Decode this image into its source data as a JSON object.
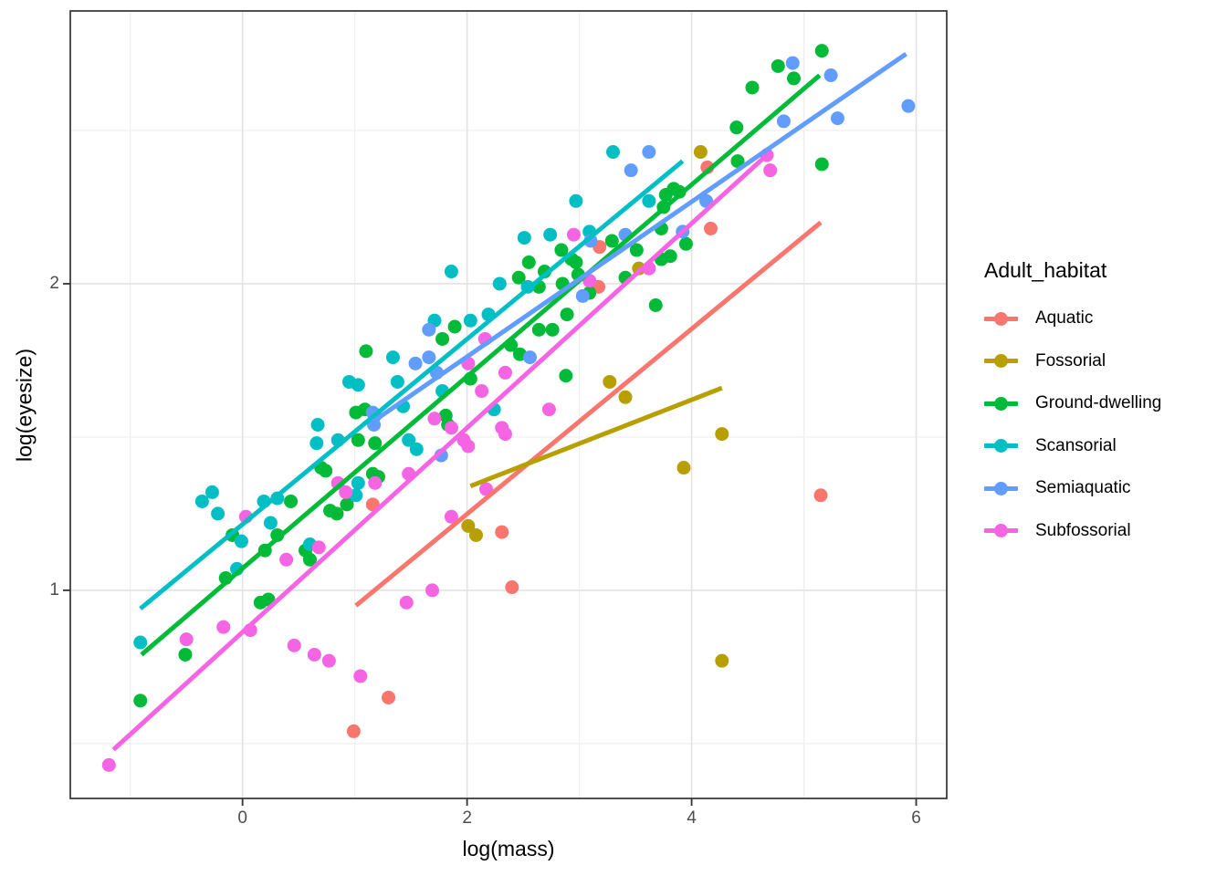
{
  "chart_data": {
    "type": "scatter",
    "title": "",
    "xlabel": "log(mass)",
    "ylabel": "log(eyesize)",
    "legend_title": "Adult_habitat",
    "legend_position": "right",
    "xlim": [
      -1.534,
      6.272
    ],
    "ylim": [
      0.321,
      2.89
    ],
    "x_ticks": [
      0,
      2,
      4,
      6
    ],
    "x_tick_labels": [
      "0",
      "2",
      "4",
      "6"
    ],
    "x_minor_ticks": [
      -1,
      1,
      3,
      5
    ],
    "y_ticks": [
      1,
      2
    ],
    "y_tick_labels": [
      "1",
      "2"
    ],
    "y_minor_ticks": [
      0.5,
      1.5,
      2.5
    ],
    "grid": true,
    "panel_border_color": "#333333",
    "grid_major_color": "#e3e3e3",
    "grid_minor_color": "#efefef",
    "tick_text_color": "#4d4d4d",
    "series": [
      {
        "name": "Aquatic",
        "color": "#F8766D",
        "points": [
          [
            3.18,
            2.12
          ],
          [
            3.17,
            1.99
          ],
          [
            4.14,
            2.38
          ],
          [
            4.17,
            2.18
          ],
          [
            5.15,
            1.31
          ],
          [
            1.16,
            1.28
          ],
          [
            2.4,
            1.01
          ],
          [
            2.31,
            1.19
          ],
          [
            1.3,
            0.65
          ],
          [
            0.99,
            0.54
          ]
        ],
        "trend": [
          [
            1.01,
            0.95
          ],
          [
            5.15,
            2.2
          ]
        ]
      },
      {
        "name": "Fossorial",
        "color": "#B79F00",
        "points": [
          [
            4.08,
            2.43
          ],
          [
            3.53,
            2.05
          ],
          [
            3.27,
            1.68
          ],
          [
            3.41,
            1.63
          ],
          [
            4.27,
            1.51
          ],
          [
            3.93,
            1.4
          ],
          [
            4.27,
            0.77
          ],
          [
            2.01,
            1.21
          ],
          [
            2.08,
            1.18
          ]
        ],
        "trend": [
          [
            2.03,
            1.34
          ],
          [
            4.27,
            1.66
          ]
        ]
      },
      {
        "name": "Ground-dwelling",
        "color": "#00BA38",
        "points": [
          [
            -0.91,
            0.64
          ],
          [
            -0.51,
            0.79
          ],
          [
            -0.15,
            1.04
          ],
          [
            -0.09,
            1.18
          ],
          [
            0.2,
            1.13
          ],
          [
            0.23,
            0.97
          ],
          [
            0.16,
            0.96
          ],
          [
            0.31,
            1.18
          ],
          [
            0.43,
            1.29
          ],
          [
            0.56,
            1.13
          ],
          [
            0.6,
            1.1
          ],
          [
            0.7,
            1.4
          ],
          [
            0.74,
            1.39
          ],
          [
            0.78,
            1.26
          ],
          [
            0.84,
            1.25
          ],
          [
            0.93,
            1.28
          ],
          [
            1.01,
            1.58
          ],
          [
            1.03,
            1.49
          ],
          [
            1.1,
            1.78
          ],
          [
            1.09,
            1.59
          ],
          [
            1.18,
            1.48
          ],
          [
            1.16,
            1.38
          ],
          [
            1.21,
            1.37
          ],
          [
            1.78,
            1.82
          ],
          [
            1.89,
            1.86
          ],
          [
            2.03,
            1.69
          ],
          [
            1.81,
            1.57
          ],
          [
            1.83,
            1.54
          ],
          [
            2.39,
            1.8
          ],
          [
            2.47,
            1.77
          ],
          [
            2.64,
            1.85
          ],
          [
            2.76,
            1.85
          ],
          [
            2.88,
            1.7
          ],
          [
            2.89,
            1.9
          ],
          [
            2.46,
            2.02
          ],
          [
            2.64,
            1.99
          ],
          [
            2.85,
            2.0
          ],
          [
            3.09,
            1.97
          ],
          [
            3.41,
            2.02
          ],
          [
            3.68,
            1.93
          ],
          [
            2.55,
            2.07
          ],
          [
            2.97,
            2.07
          ],
          [
            3.29,
            2.14
          ],
          [
            3.51,
            2.11
          ],
          [
            2.84,
            2.11
          ],
          [
            2.93,
            2.08
          ],
          [
            2.99,
            2.03
          ],
          [
            2.69,
            2.04
          ],
          [
            3.77,
            2.29
          ],
          [
            3.84,
            2.31
          ],
          [
            3.89,
            2.3
          ],
          [
            3.75,
            2.25
          ],
          [
            3.73,
            2.18
          ],
          [
            3.73,
            2.08
          ],
          [
            3.81,
            2.09
          ],
          [
            3.95,
            2.13
          ],
          [
            4.4,
            2.51
          ],
          [
            4.54,
            2.64
          ],
          [
            4.77,
            2.71
          ],
          [
            4.91,
            2.67
          ],
          [
            5.16,
            2.76
          ],
          [
            5.16,
            2.39
          ],
          [
            4.41,
            2.4
          ]
        ],
        "trend": [
          [
            -0.9,
            0.79
          ],
          [
            5.14,
            2.68
          ]
        ]
      },
      {
        "name": "Scansorial",
        "color": "#00BFC4",
        "points": [
          [
            -0.91,
            0.83
          ],
          [
            -0.36,
            1.29
          ],
          [
            -0.27,
            1.32
          ],
          [
            -0.22,
            1.25
          ],
          [
            0.19,
            1.29
          ],
          [
            0.31,
            1.3
          ],
          [
            0.25,
            1.22
          ],
          [
            -0.05,
            1.07
          ],
          [
            -0.01,
            1.16
          ],
          [
            0.6,
            1.15
          ],
          [
            0.95,
            1.68
          ],
          [
            1.03,
            1.67
          ],
          [
            0.67,
            1.54
          ],
          [
            0.66,
            1.48
          ],
          [
            0.85,
            1.49
          ],
          [
            1.03,
            1.35
          ],
          [
            1.01,
            1.31
          ],
          [
            1.34,
            1.76
          ],
          [
            1.38,
            1.68
          ],
          [
            1.43,
            1.6
          ],
          [
            1.18,
            1.57
          ],
          [
            1.48,
            1.49
          ],
          [
            1.55,
            1.46
          ],
          [
            1.71,
            1.88
          ],
          [
            2.03,
            1.88
          ],
          [
            2.19,
            1.9
          ],
          [
            2.24,
            1.59
          ],
          [
            1.78,
            1.65
          ],
          [
            1.86,
            2.04
          ],
          [
            2.29,
            2.0
          ],
          [
            2.54,
            1.99
          ],
          [
            2.51,
            2.15
          ],
          [
            2.74,
            2.16
          ],
          [
            2.97,
            2.27
          ],
          [
            3.09,
            2.17
          ],
          [
            3.3,
            2.43
          ],
          [
            3.62,
            2.27
          ]
        ],
        "trend": [
          [
            -0.91,
            0.94
          ],
          [
            3.92,
            2.4
          ]
        ]
      },
      {
        "name": "Semiaquatic",
        "color": "#619CFF",
        "points": [
          [
            1.16,
            1.58
          ],
          [
            1.17,
            1.54
          ],
          [
            1.54,
            1.74
          ],
          [
            1.66,
            1.76
          ],
          [
            1.73,
            1.71
          ],
          [
            1.77,
            1.44
          ],
          [
            1.66,
            1.85
          ],
          [
            2.56,
            1.76
          ],
          [
            3.03,
            1.96
          ],
          [
            3.1,
            2.14
          ],
          [
            3.41,
            2.16
          ],
          [
            3.46,
            2.37
          ],
          [
            3.62,
            2.43
          ],
          [
            3.92,
            2.17
          ],
          [
            4.13,
            2.27
          ],
          [
            4.82,
            2.53
          ],
          [
            4.9,
            2.72
          ],
          [
            5.24,
            2.68
          ],
          [
            5.3,
            2.54
          ],
          [
            5.93,
            2.58
          ]
        ],
        "trend": [
          [
            1.16,
            1.55
          ],
          [
            5.91,
            2.75
          ]
        ]
      },
      {
        "name": "Subfossorial",
        "color": "#F564E2",
        "points": [
          [
            -1.19,
            0.43
          ],
          [
            -0.5,
            0.84
          ],
          [
            -0.17,
            0.88
          ],
          [
            0.07,
            0.87
          ],
          [
            0.39,
            1.1
          ],
          [
            0.46,
            0.82
          ],
          [
            0.64,
            0.79
          ],
          [
            0.77,
            0.77
          ],
          [
            1.05,
            0.72
          ],
          [
            0.68,
            1.14
          ],
          [
            0.03,
            1.24
          ],
          [
            0.85,
            1.35
          ],
          [
            0.92,
            1.32
          ],
          [
            1.46,
            0.96
          ],
          [
            1.69,
            1.0
          ],
          [
            1.71,
            1.56
          ],
          [
            1.86,
            1.53
          ],
          [
            2.01,
            1.74
          ],
          [
            2.13,
            1.65
          ],
          [
            2.34,
            1.71
          ],
          [
            2.31,
            1.53
          ],
          [
            2.34,
            1.51
          ],
          [
            1.97,
            1.49
          ],
          [
            2.01,
            1.47
          ],
          [
            1.48,
            1.38
          ],
          [
            1.18,
            1.35
          ],
          [
            1.86,
            1.24
          ],
          [
            2.17,
            1.33
          ],
          [
            2.73,
            1.59
          ],
          [
            2.95,
            2.16
          ],
          [
            3.09,
            2.01
          ],
          [
            2.16,
            1.82
          ],
          [
            3.62,
            2.05
          ],
          [
            4.67,
            2.42
          ],
          [
            4.7,
            2.37
          ]
        ],
        "trend": [
          [
            -1.15,
            0.48
          ],
          [
            4.67,
            2.42
          ]
        ]
      }
    ]
  }
}
